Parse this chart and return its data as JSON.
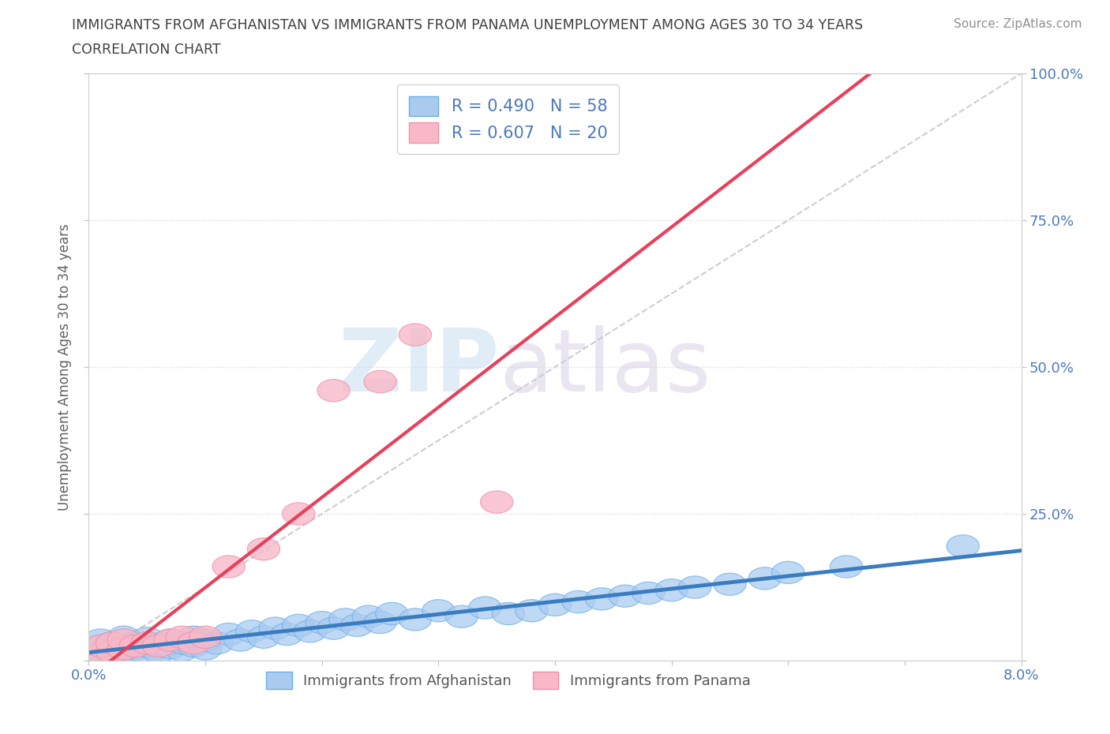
{
  "title_line1": "IMMIGRANTS FROM AFGHANISTAN VS IMMIGRANTS FROM PANAMA UNEMPLOYMENT AMONG AGES 30 TO 34 YEARS",
  "title_line2": "CORRELATION CHART",
  "source_text": "Source: ZipAtlas.com",
  "ylabel": "Unemployment Among Ages 30 to 34 years",
  "xlim": [
    0.0,
    0.08
  ],
  "ylim": [
    0.0,
    1.0
  ],
  "xticks": [
    0.0,
    0.01,
    0.02,
    0.03,
    0.04,
    0.05,
    0.06,
    0.07,
    0.08
  ],
  "xticklabels": [
    "0.0%",
    "",
    "",
    "",
    "",
    "",
    "",
    "",
    "8.0%"
  ],
  "yticks": [
    0.0,
    0.25,
    0.5,
    0.75,
    1.0
  ],
  "yticklabels": [
    "",
    "25.0%",
    "50.0%",
    "75.0%",
    "100.0%"
  ],
  "afghanistan_color": "#aacbf0",
  "afghanistan_edge": "#6aaee8",
  "panama_color": "#f8b8c8",
  "panama_edge": "#f090a8",
  "afghanistan_line_color": "#3a7cc0",
  "panama_line_color": "#e8405a",
  "ref_line_color": "#c8c8c8",
  "r_afghanistan": 0.49,
  "n_afghanistan": 58,
  "r_panama": 0.607,
  "n_panama": 20,
  "legend_label_afghanistan": "Immigrants from Afghanistan",
  "legend_label_panama": "Immigrants from Panama",
  "watermark_zip": "ZIP",
  "watermark_atlas": "atlas",
  "background_color": "#ffffff",
  "grid_color": "#d8d8d8",
  "title_color": "#404040",
  "axis_label_color": "#606060",
  "tick_label_color": "#4a7abf",
  "afghanistan_scatter_x": [
    0.001,
    0.001,
    0.001,
    0.002,
    0.002,
    0.002,
    0.003,
    0.003,
    0.003,
    0.004,
    0.004,
    0.005,
    0.005,
    0.005,
    0.006,
    0.006,
    0.007,
    0.007,
    0.008,
    0.008,
    0.009,
    0.009,
    0.01,
    0.01,
    0.011,
    0.012,
    0.013,
    0.014,
    0.015,
    0.016,
    0.017,
    0.018,
    0.019,
    0.02,
    0.021,
    0.022,
    0.023,
    0.024,
    0.025,
    0.026,
    0.028,
    0.03,
    0.032,
    0.034,
    0.036,
    0.038,
    0.04,
    0.042,
    0.044,
    0.046,
    0.048,
    0.05,
    0.052,
    0.055,
    0.058,
    0.06,
    0.065,
    0.075
  ],
  "afghanistan_scatter_y": [
    0.015,
    0.025,
    0.035,
    0.01,
    0.02,
    0.03,
    0.015,
    0.025,
    0.04,
    0.02,
    0.03,
    0.01,
    0.025,
    0.038,
    0.015,
    0.028,
    0.022,
    0.035,
    0.018,
    0.03,
    0.025,
    0.04,
    0.02,
    0.035,
    0.03,
    0.045,
    0.035,
    0.05,
    0.04,
    0.055,
    0.045,
    0.06,
    0.05,
    0.065,
    0.055,
    0.07,
    0.06,
    0.075,
    0.065,
    0.08,
    0.07,
    0.085,
    0.075,
    0.09,
    0.08,
    0.085,
    0.095,
    0.1,
    0.105,
    0.11,
    0.115,
    0.12,
    0.125,
    0.13,
    0.14,
    0.15,
    0.16,
    0.195
  ],
  "panama_scatter_x": [
    0.001,
    0.001,
    0.002,
    0.002,
    0.003,
    0.003,
    0.004,
    0.005,
    0.006,
    0.007,
    0.008,
    0.009,
    0.01,
    0.012,
    0.015,
    0.018,
    0.021,
    0.025,
    0.028,
    0.035
  ],
  "panama_scatter_y": [
    0.01,
    0.025,
    0.015,
    0.03,
    0.02,
    0.035,
    0.025,
    0.03,
    0.025,
    0.035,
    0.04,
    0.03,
    0.04,
    0.16,
    0.19,
    0.25,
    0.46,
    0.475,
    0.555,
    0.27
  ]
}
